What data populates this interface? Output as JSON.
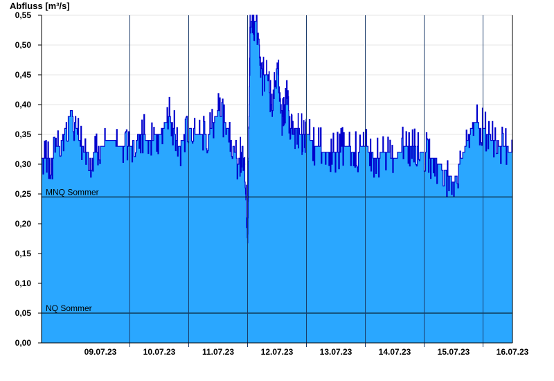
{
  "chart_data": {
    "type": "area",
    "ylabel": "Abfluss [m³/s]",
    "ylim": [
      0,
      0.55
    ],
    "yticks": [
      "0,00",
      "0,05",
      "0,10",
      "0,15",
      "0,20",
      "0,25",
      "0,30",
      "0,35",
      "0,40",
      "0,45",
      "0,50",
      "0,55"
    ],
    "xlim": [
      "08.07.23 12:00",
      "16.07.23 12:00"
    ],
    "day_tick_labels": [
      "09.07.23",
      "10.07.23",
      "11.07.23",
      "12.07.23",
      "13.07.23",
      "14.07.23",
      "15.07.23",
      "16.07.23"
    ],
    "grid": true,
    "fill_color": "#2aa7ff",
    "line_color": "#0000cc",
    "reference_lines": [
      {
        "name": "MNQ Sommer",
        "value": 0.245
      },
      {
        "name": "NQ Sommer",
        "value": 0.05
      }
    ],
    "series": [
      {
        "x": [
          "08.07.23 12:00",
          "08.07.23 16:00",
          "08.07.23 20:00",
          "09.07.23 00:00",
          "09.07.23 04:00",
          "09.07.23 08:00",
          "09.07.23 12:00",
          "09.07.23 16:00",
          "09.07.23 20:00",
          "10.07.23 00:00",
          "10.07.23 04:00",
          "10.07.23 08:00",
          "10.07.23 12:00",
          "10.07.23 16:00",
          "10.07.23 20:00",
          "11.07.23 00:00",
          "11.07.23 04:00",
          "11.07.23 08:00",
          "11.07.23 12:00",
          "11.07.23 16:00",
          "11.07.23 20:00",
          "11.07.23 22:00",
          "12.07.23 00:00",
          "12.07.23 01:00",
          "12.07.23 02:00",
          "12.07.23 04:00",
          "12.07.23 06:00",
          "12.07.23 08:00",
          "12.07.23 10:00",
          "12.07.23 12:00",
          "12.07.23 14:00",
          "12.07.23 16:00",
          "12.07.23 18:00",
          "12.07.23 20:00",
          "12.07.23 22:00",
          "13.07.23 00:00",
          "13.07.23 04:00",
          "13.07.23 08:00",
          "13.07.23 12:00",
          "13.07.23 16:00",
          "13.07.23 20:00",
          "14.07.23 00:00",
          "14.07.23 04:00",
          "14.07.23 08:00",
          "14.07.23 12:00",
          "14.07.23 16:00",
          "14.07.23 20:00",
          "15.07.23 00:00",
          "15.07.23 04:00",
          "15.07.23 08:00",
          "15.07.23 12:00",
          "15.07.23 16:00",
          "15.07.23 20:00",
          "16.07.23 00:00",
          "16.07.23 04:00",
          "16.07.23 08:00",
          "16.07.23 12:00"
        ],
        "y": [
          0.31,
          0.31,
          0.34,
          0.39,
          0.33,
          0.31,
          0.33,
          0.34,
          0.33,
          0.33,
          0.35,
          0.34,
          0.35,
          0.38,
          0.33,
          0.36,
          0.35,
          0.35,
          0.39,
          0.36,
          0.3,
          0.33,
          0.19,
          0.52,
          0.55,
          0.53,
          0.45,
          0.45,
          0.38,
          0.47,
          0.38,
          0.41,
          0.35,
          0.36,
          0.35,
          0.35,
          0.33,
          0.32,
          0.32,
          0.33,
          0.32,
          0.33,
          0.31,
          0.32,
          0.31,
          0.33,
          0.33,
          0.32,
          0.31,
          0.29,
          0.27,
          0.32,
          0.37,
          0.36,
          0.34,
          0.33,
          0.32
        ]
      }
    ]
  }
}
